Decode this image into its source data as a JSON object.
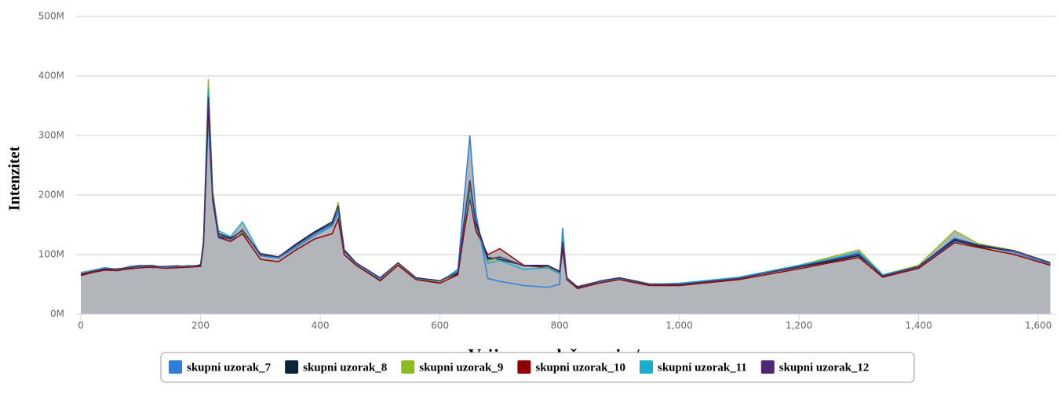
{
  "chart_data": {
    "type": "area-line",
    "x_label": "Vrijeme zadržavanja / s",
    "y_label": "Intenzitet",
    "xlim": [
      -8,
      1630
    ],
    "ylim": [
      0,
      500000000
    ],
    "xticks": [
      0,
      200,
      400,
      600,
      800,
      {
        "value": 1000,
        "label": "1,000"
      },
      {
        "value": 1200,
        "label": "1,200"
      },
      {
        "value": 1400,
        "label": "1,400"
      },
      {
        "value": 1600,
        "label": "1,600"
      }
    ],
    "yticks": [
      {
        "value": 0,
        "label": "0M"
      },
      {
        "value": 100000000,
        "label": "100M"
      },
      {
        "value": 200000000,
        "label": "200M"
      },
      {
        "value": 300000000,
        "label": "300M"
      },
      {
        "value": 400000000,
        "label": "400M"
      },
      {
        "value": 500000000,
        "label": "500M"
      }
    ],
    "grid": true,
    "fill_color": "#b2b6ba",
    "legend": "bottom",
    "x": [
      0,
      20,
      40,
      60,
      80,
      100,
      120,
      140,
      160,
      180,
      200,
      205,
      213,
      220,
      230,
      250,
      270,
      300,
      330,
      360,
      390,
      420,
      430,
      440,
      460,
      500,
      530,
      560,
      600,
      630,
      640,
      650,
      660,
      680,
      700,
      740,
      780,
      800,
      805,
      812,
      830,
      870,
      900,
      950,
      1000,
      1100,
      1200,
      1250,
      1300,
      1340,
      1400,
      1460,
      1500,
      1560,
      1620
    ],
    "series": [
      {
        "name": "skupni uzorak_7",
        "color": "#2f7ed8",
        "values": [
          70000000,
          74000000,
          78000000,
          74000000,
          80000000,
          82000000,
          78000000,
          80000000,
          79000000,
          82000000,
          80000000,
          115000000,
          330000000,
          190000000,
          128000000,
          122000000,
          142000000,
          98000000,
          94000000,
          112000000,
          132000000,
          148000000,
          170000000,
          100000000,
          84000000,
          58000000,
          84000000,
          58000000,
          54000000,
          75000000,
          190000000,
          300000000,
          170000000,
          60000000,
          55000000,
          48000000,
          45000000,
          50000000,
          145000000,
          58000000,
          44000000,
          54000000,
          59000000,
          50000000,
          51000000,
          60000000,
          82000000,
          92000000,
          102000000,
          64000000,
          79000000,
          122000000,
          117000000,
          103000000,
          84000000
        ]
      },
      {
        "name": "skupni uzorak_8",
        "color": "#0d233a",
        "values": [
          66000000,
          71000000,
          75000000,
          76000000,
          77000000,
          81000000,
          82000000,
          78000000,
          81000000,
          79000000,
          83000000,
          122000000,
          350000000,
          205000000,
          135000000,
          128000000,
          138000000,
          102000000,
          96000000,
          118000000,
          138000000,
          155000000,
          185000000,
          108000000,
          86000000,
          61000000,
          86000000,
          61000000,
          56000000,
          68000000,
          140000000,
          215000000,
          155000000,
          95000000,
          92000000,
          82000000,
          82000000,
          72000000,
          118000000,
          60000000,
          46000000,
          56000000,
          61000000,
          51000000,
          50000000,
          61000000,
          79000000,
          88000000,
          98000000,
          66000000,
          81000000,
          124000000,
          114000000,
          106000000,
          86000000
        ]
      },
      {
        "name": "skupni uzorak_9",
        "color": "#8bbc21",
        "values": [
          69000000,
          73000000,
          77000000,
          75000000,
          79000000,
          80000000,
          81000000,
          79000000,
          80000000,
          81000000,
          82000000,
          125000000,
          395000000,
          210000000,
          132000000,
          126000000,
          139000000,
          101000000,
          95000000,
          116000000,
          136000000,
          150000000,
          188000000,
          106000000,
          85000000,
          60000000,
          84000000,
          60000000,
          55000000,
          70000000,
          145000000,
          220000000,
          148000000,
          88000000,
          96000000,
          81000000,
          80000000,
          70000000,
          122000000,
          61000000,
          45000000,
          55000000,
          60000000,
          51000000,
          50000000,
          62000000,
          82000000,
          95000000,
          108000000,
          66000000,
          82000000,
          140000000,
          118000000,
          107000000,
          87000000
        ]
      },
      {
        "name": "skupni uzorak_10",
        "color": "#910000",
        "values": [
          65000000,
          70000000,
          74000000,
          73000000,
          76000000,
          78000000,
          79000000,
          77000000,
          78000000,
          79000000,
          80000000,
          118000000,
          360000000,
          195000000,
          130000000,
          122000000,
          135000000,
          92000000,
          88000000,
          108000000,
          126000000,
          135000000,
          160000000,
          100000000,
          82000000,
          56000000,
          82000000,
          58000000,
          52000000,
          66000000,
          135000000,
          195000000,
          140000000,
          100000000,
          110000000,
          82000000,
          78000000,
          68000000,
          110000000,
          58000000,
          43000000,
          53000000,
          58000000,
          48000000,
          48000000,
          58000000,
          76000000,
          86000000,
          95000000,
          62000000,
          77000000,
          120000000,
          112000000,
          100000000,
          82000000
        ]
      },
      {
        "name": "skupni uzorak_11",
        "color": "#1aadce",
        "values": [
          68000000,
          72000000,
          78000000,
          75000000,
          78000000,
          80000000,
          80000000,
          79000000,
          80000000,
          80000000,
          82000000,
          120000000,
          380000000,
          200000000,
          140000000,
          130000000,
          155000000,
          100000000,
          95000000,
          115000000,
          135000000,
          150000000,
          175000000,
          105000000,
          85000000,
          60000000,
          86000000,
          60000000,
          56000000,
          72000000,
          150000000,
          200000000,
          150000000,
          85000000,
          90000000,
          75000000,
          78000000,
          68000000,
          130000000,
          60000000,
          45000000,
          55000000,
          60000000,
          50000000,
          52000000,
          62000000,
          82000000,
          92000000,
          104000000,
          66000000,
          80000000,
          128000000,
          116000000,
          106000000,
          86000000
        ]
      },
      {
        "name": "skupni uzorak_12",
        "color": "#492970",
        "values": [
          67000000,
          72000000,
          76000000,
          76000000,
          78000000,
          81000000,
          80000000,
          80000000,
          81000000,
          80000000,
          82000000,
          121000000,
          365000000,
          202000000,
          131000000,
          126000000,
          141000000,
          100000000,
          96000000,
          116000000,
          136000000,
          152000000,
          182000000,
          106000000,
          86000000,
          61000000,
          86000000,
          61000000,
          56000000,
          70000000,
          152000000,
          225000000,
          152000000,
          92000000,
          96000000,
          81000000,
          81000000,
          71000000,
          121000000,
          61000000,
          45000000,
          56000000,
          61000000,
          50000000,
          50000000,
          60000000,
          80000000,
          90000000,
          100000000,
          64000000,
          80000000,
          126000000,
          116000000,
          106000000,
          86000000
        ]
      }
    ]
  }
}
